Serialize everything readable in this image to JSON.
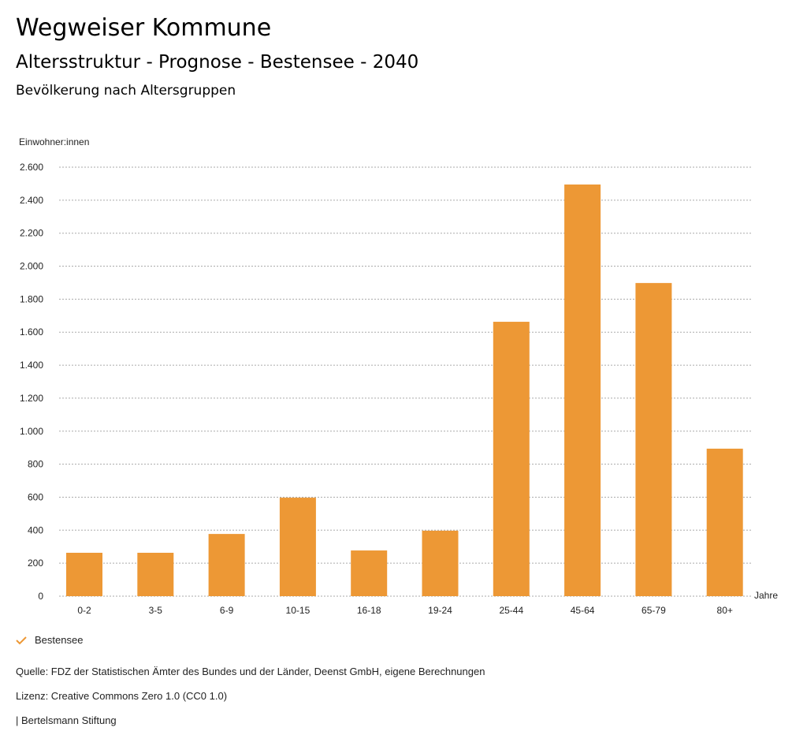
{
  "header": {
    "title": "Wegweiser Kommune",
    "subtitle": "Altersstruktur - Prognose - Bestensee - 2040",
    "chart_title": "Bevölkerung nach Altersgruppen"
  },
  "chart_data": {
    "type": "bar",
    "title": "Bevölkerung nach Altersgruppen",
    "ylabel": "Einwohner:innen",
    "xlabel": "Jahre",
    "ylim": [
      0,
      2600
    ],
    "yticks": [
      0,
      200,
      400,
      600,
      800,
      1000,
      1200,
      1400,
      1600,
      1800,
      2000,
      2200,
      2400,
      2600
    ],
    "ytick_labels": [
      "0",
      "200",
      "400",
      "600",
      "800",
      "1.000",
      "1.200",
      "1.400",
      "1.600",
      "1.800",
      "2.000",
      "2.200",
      "2.400",
      "2.600"
    ],
    "categories": [
      "0-2",
      "3-5",
      "6-9",
      "10-15",
      "16-18",
      "19-24",
      "25-44",
      "45-64",
      "65-79",
      "80+"
    ],
    "series": [
      {
        "name": "Bestensee",
        "color": "#ed9835",
        "values": [
          263,
          263,
          377,
          597,
          277,
          397,
          1663,
          2495,
          1898,
          894
        ]
      }
    ],
    "grid": true,
    "legend": "bottom-left"
  },
  "legend": {
    "label": "Bestensee",
    "icon": "check-icon"
  },
  "footer": {
    "source": "Quelle: FDZ der Statistischen Ämter des Bundes und der Länder, Deenst GmbH, eigene Berechnungen",
    "license": "Lizenz: Creative Commons Zero 1.0 (CC0 1.0)",
    "credit": "| Bertelsmann Stiftung"
  }
}
